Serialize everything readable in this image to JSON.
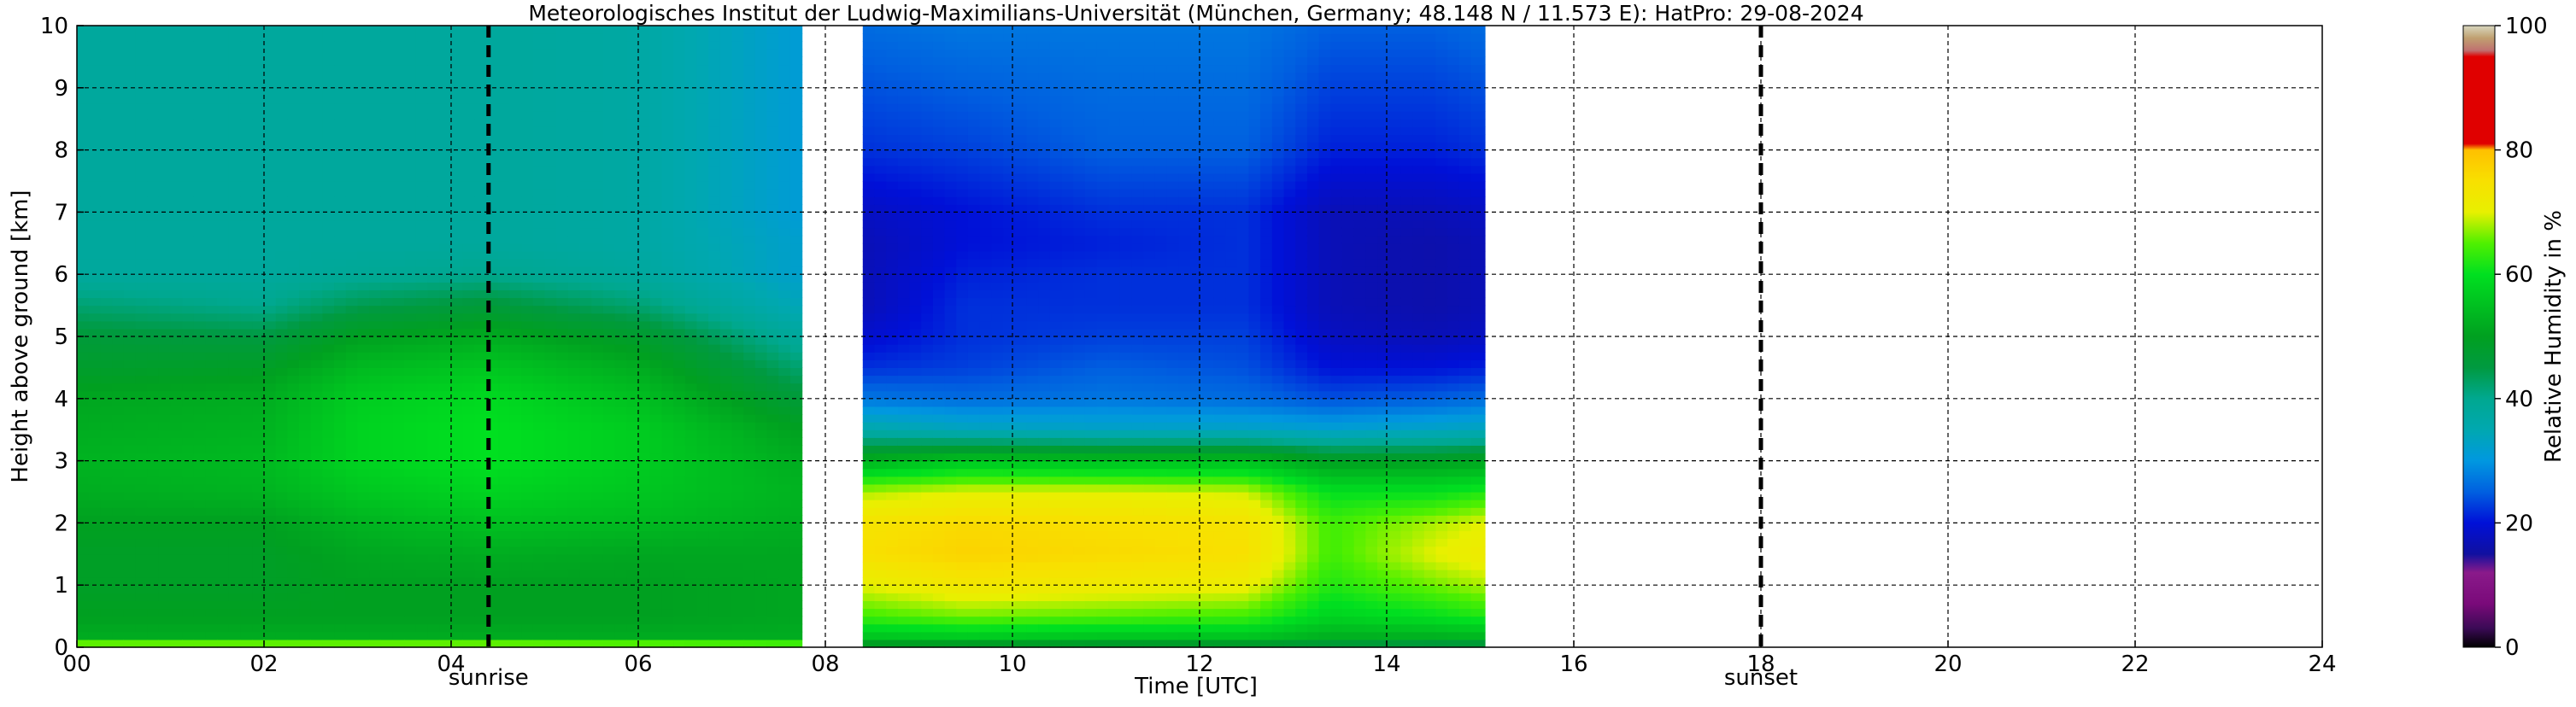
{
  "chart_data": {
    "type": "heatmap",
    "title": "Meteorologisches Institut der Ludwig-Maximilians-Universität (München, Germany; 48.148 N / 11.573 E):    HatPro: 29-08-2024",
    "xlabel": "Time [UTC]",
    "ylabel": "Height above ground [km]",
    "xlim": [
      0,
      24
    ],
    "ylim": [
      0,
      10
    ],
    "x_ticks": [
      "00",
      "02",
      "04",
      "06",
      "08",
      "10",
      "12",
      "14",
      "16",
      "18",
      "20",
      "22",
      "24"
    ],
    "y_ticks": [
      "0",
      "1",
      "2",
      "3",
      "4",
      "5",
      "6",
      "7",
      "8",
      "9",
      "10"
    ],
    "grid": true,
    "colorbar": {
      "label": "Relative Humidity in %",
      "range": [
        0,
        100
      ],
      "ticks": [
        "0",
        "20",
        "40",
        "60",
        "80",
        "100"
      ],
      "colors": [
        [
          0,
          "#000000"
        ],
        [
          3,
          "#3a0a55"
        ],
        [
          7,
          "#7a0a7a"
        ],
        [
          12,
          "#8a1a8a"
        ],
        [
          15,
          "#1010a0"
        ],
        [
          20,
          "#0010d8"
        ],
        [
          25,
          "#0060e0"
        ],
        [
          30,
          "#0098e0"
        ],
        [
          35,
          "#00a8b0"
        ],
        [
          40,
          "#00a890"
        ],
        [
          45,
          "#009a40"
        ],
        [
          50,
          "#00a020"
        ],
        [
          60,
          "#00e020"
        ],
        [
          65,
          "#50f000"
        ],
        [
          70,
          "#e8f000"
        ],
        [
          75,
          "#f8e000"
        ],
        [
          80,
          "#ffc000"
        ],
        [
          81,
          "#e00000"
        ],
        [
          95,
          "#e00000"
        ],
        [
          96,
          "#c07070"
        ],
        [
          98,
          "#c0a070"
        ],
        [
          100,
          "#d8d8c0"
        ]
      ]
    },
    "events": [
      {
        "label": "sunrise",
        "time": 4.4
      },
      {
        "label": "sunset",
        "time": 18.0
      }
    ],
    "data_segments": [
      {
        "start": 0.0,
        "end": 7.75
      },
      {
        "start": 8.4,
        "end": 15.05
      }
    ],
    "profile_heights_km": [
      0,
      0.15,
      0.5,
      1,
      1.5,
      2,
      2.5,
      3,
      3.5,
      4,
      4.5,
      5,
      5.5,
      6,
      6.5,
      7,
      8,
      9,
      10
    ],
    "profiles": [
      {
        "time": 0,
        "rh": [
          75,
          52,
          50,
          49,
          49,
          50,
          52,
          53,
          52,
          51,
          48,
          46,
          42,
          38,
          38,
          38,
          38,
          38,
          38
        ]
      },
      {
        "time": 2,
        "rh": [
          75,
          52,
          50,
          49,
          49,
          50,
          53,
          54,
          53,
          52,
          49,
          45,
          40,
          38,
          38,
          38,
          38,
          38,
          38
        ]
      },
      {
        "time": 3,
        "rh": [
          75,
          52,
          50,
          50,
          51,
          53,
          56,
          58,
          58,
          57,
          54,
          50,
          44,
          39,
          38,
          38,
          38,
          38,
          38
        ]
      },
      {
        "time": 4.4,
        "rh": [
          75,
          52,
          50,
          50,
          52,
          55,
          58,
          60,
          60,
          59,
          56,
          52,
          46,
          40,
          38,
          38,
          38,
          38,
          38
        ]
      },
      {
        "time": 6,
        "rh": [
          74,
          52,
          50,
          50,
          51,
          54,
          56,
          57,
          57,
          55,
          52,
          48,
          42,
          38,
          37,
          37,
          37,
          37,
          37
        ]
      },
      {
        "time": 7.75,
        "rh": [
          72,
          52,
          51,
          51,
          51,
          52,
          53,
          52,
          50,
          46,
          42,
          38,
          34,
          32,
          32,
          31,
          31,
          31,
          31
        ]
      },
      {
        "time": 8.4,
        "rh": [
          46,
          55,
          64,
          70,
          75,
          74,
          68,
          53,
          36,
          27,
          22,
          19,
          17,
          17,
          17,
          18,
          22,
          24,
          26
        ]
      },
      {
        "time": 9.5,
        "rh": [
          45,
          56,
          66,
          73,
          77,
          76,
          70,
          56,
          34,
          26,
          23,
          22,
          22,
          21,
          20,
          20,
          23,
          25,
          27
        ]
      },
      {
        "time": 11,
        "rh": [
          44,
          55,
          65,
          72,
          76,
          75,
          70,
          55,
          33,
          27,
          25,
          23,
          22,
          22,
          21,
          22,
          25,
          26,
          27
        ]
      },
      {
        "time": 12.5,
        "rh": [
          44,
          55,
          64,
          71,
          75,
          74,
          69,
          55,
          33,
          26,
          24,
          23,
          22,
          22,
          22,
          22,
          25,
          26,
          27
        ]
      },
      {
        "time": 13.4,
        "rh": [
          43,
          52,
          58,
          62,
          64,
          64,
          60,
          50,
          32,
          24,
          20,
          18,
          17,
          17,
          17,
          17,
          21,
          23,
          25
        ]
      },
      {
        "time": 14.5,
        "rh": [
          42,
          52,
          60,
          66,
          70,
          68,
          60,
          50,
          33,
          25,
          20,
          17,
          16,
          16,
          16,
          17,
          21,
          23,
          25
        ]
      },
      {
        "time": 15.05,
        "rh": [
          42,
          53,
          62,
          68,
          72,
          70,
          62,
          51,
          34,
          26,
          21,
          18,
          17,
          17,
          17,
          18,
          22,
          24,
          26
        ]
      }
    ]
  }
}
